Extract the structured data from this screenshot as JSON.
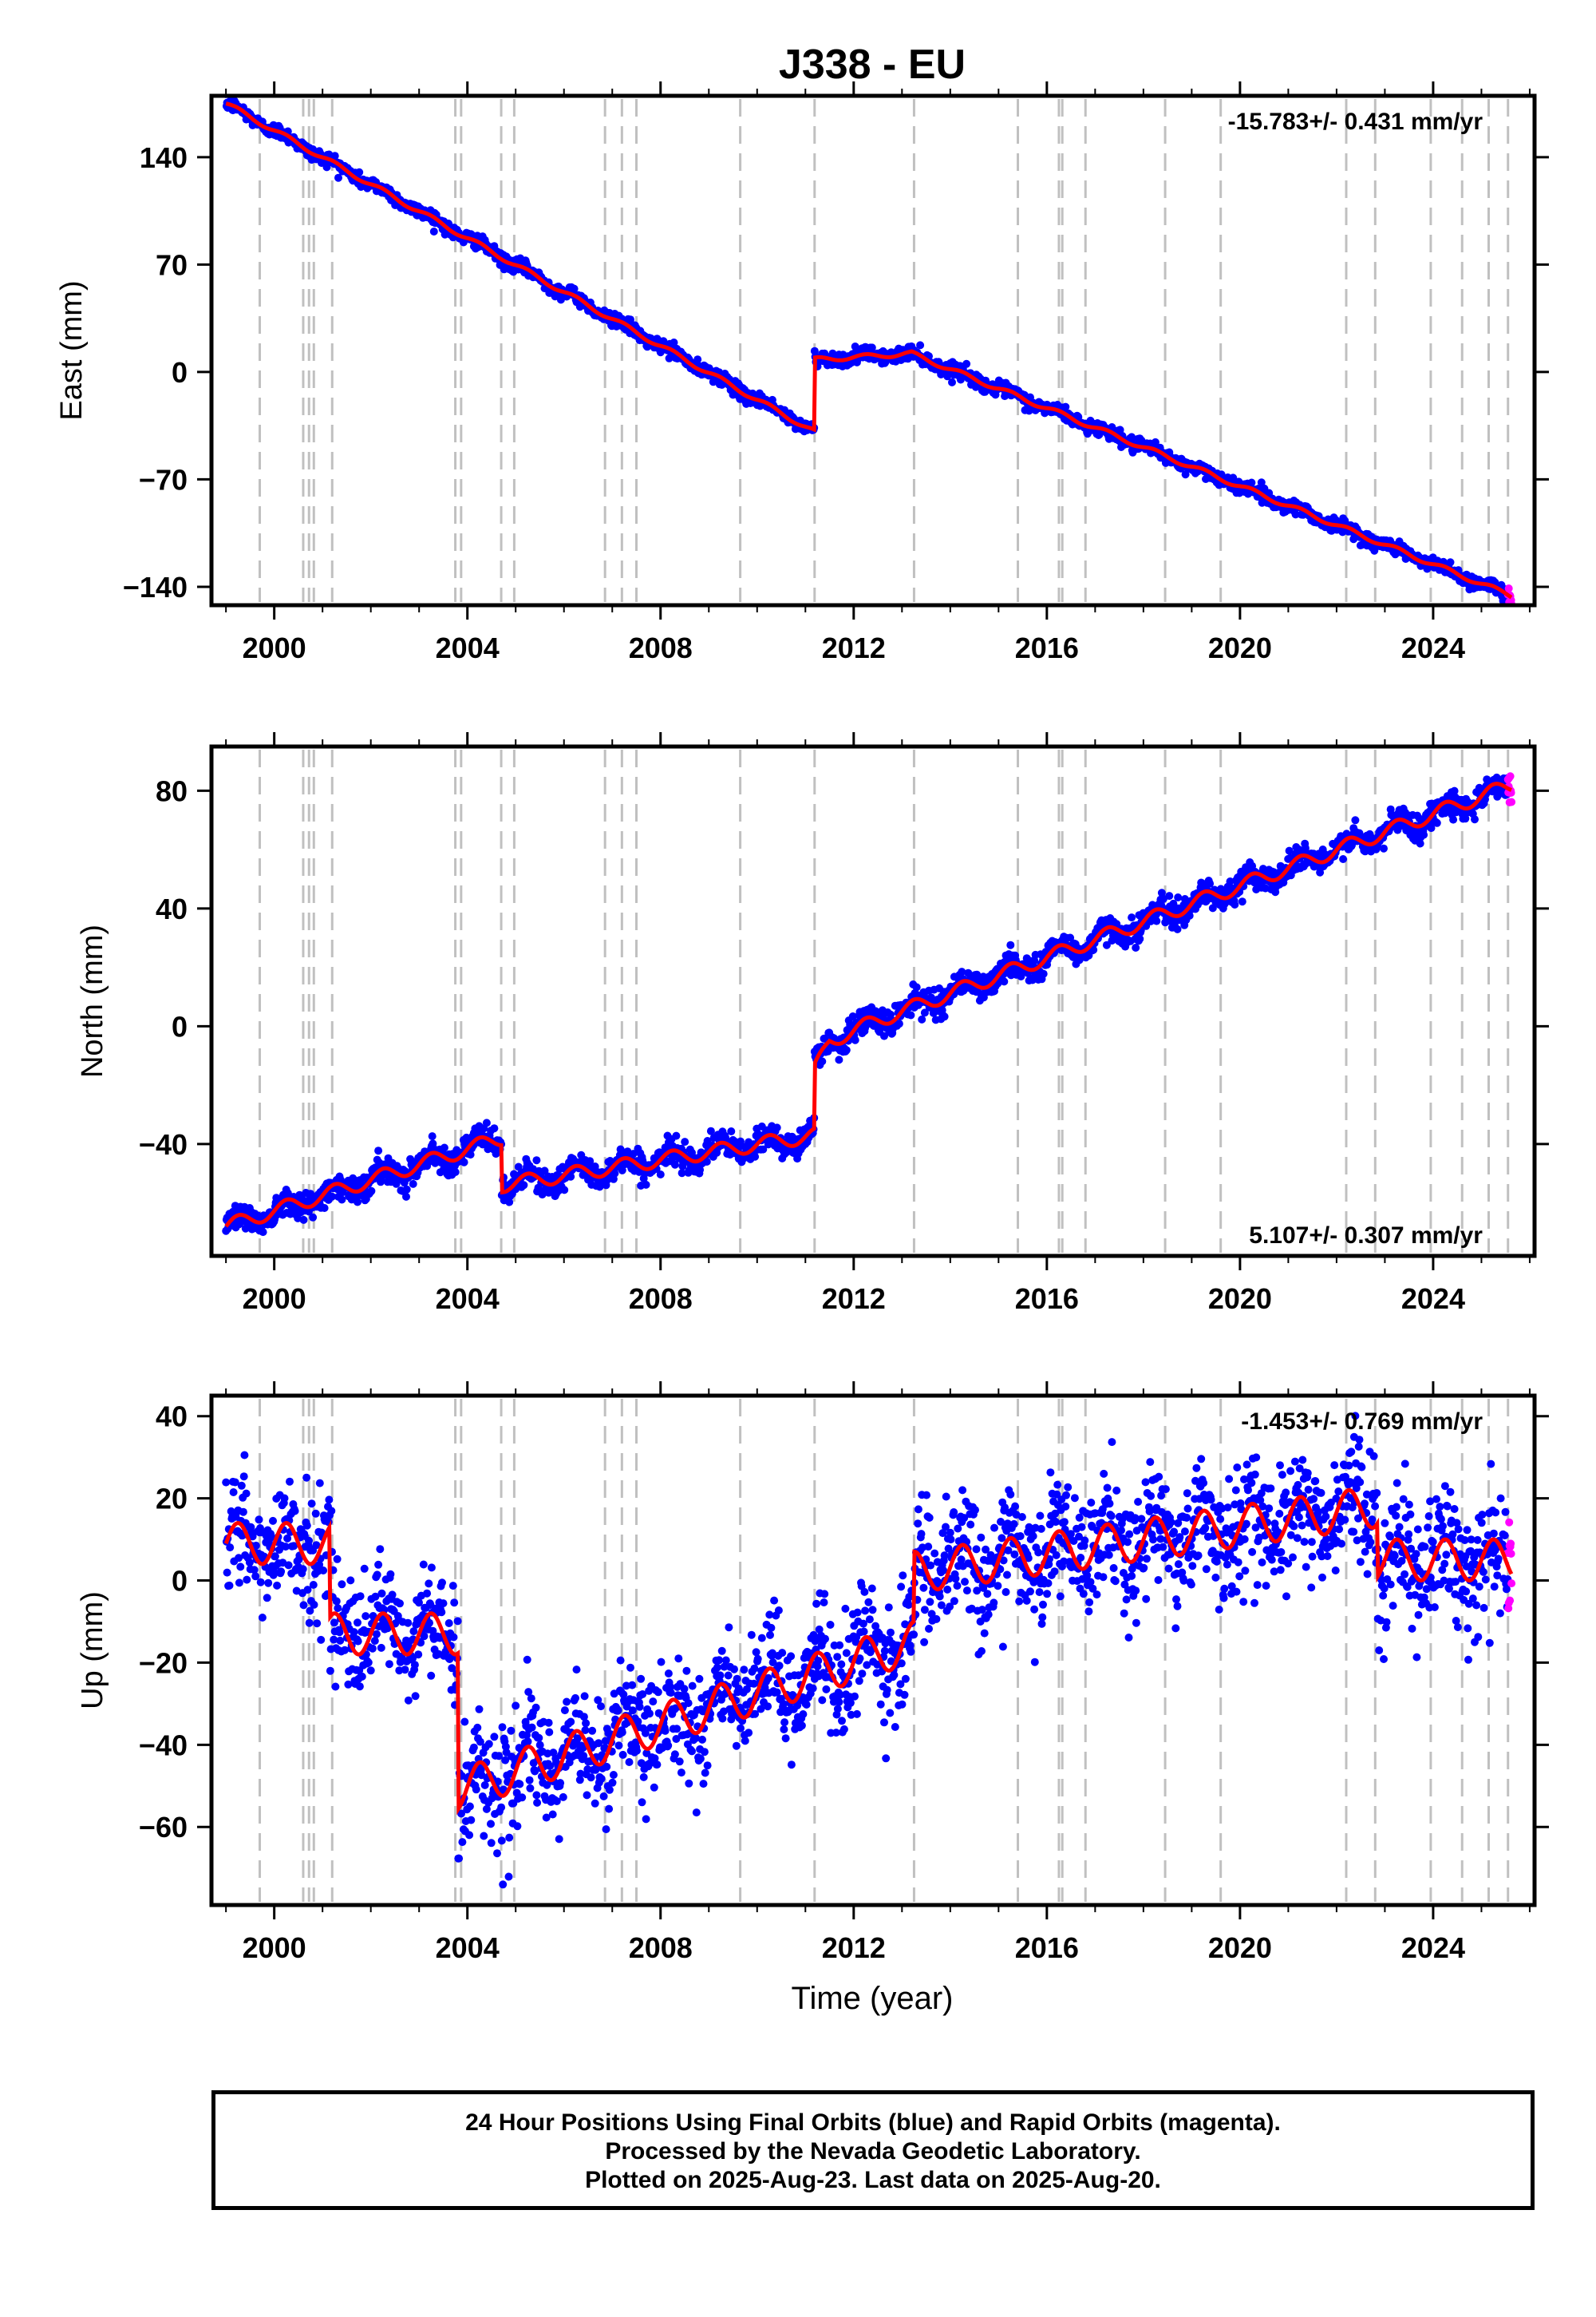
{
  "title": "J338 - EU",
  "colors": {
    "final_orbits": "#0000ff",
    "rapid_orbits": "#ff00ff",
    "model": "#ff0000",
    "event_lines": "#c0c0c0"
  },
  "chart_data": [
    {
      "type": "scatter",
      "component": "east",
      "ylabel": "East (mm)",
      "rate_label": "-15.783+/- 0.431 mm/yr",
      "rate_position": "top-right",
      "xlim": [
        1998.7,
        2026.1
      ],
      "ylim": [
        -152,
        180
      ],
      "xticks": [
        2000,
        2004,
        2008,
        2012,
        2016,
        2020,
        2024
      ],
      "yticks": [
        140,
        70,
        0,
        -70,
        -140
      ],
      "ytick_labels": [
        "140",
        "70",
        "0",
        "−70",
        "−140"
      ],
      "trend_model": {
        "segments": [
          {
            "x": [
              1999.0,
              2011.19
            ],
            "y": [
              175,
              -39
            ]
          },
          {
            "x": [
              2011.19,
              2013.2,
              2025.63
            ],
            "y": [
              8,
              12,
              -146
            ]
          }
        ],
        "annual_amplitude": 1.5
      },
      "final_orbits_range": [
        1999.0,
        2025.55
      ],
      "rapid_orbits_range": [
        2025.55,
        2025.63
      ],
      "scatter_noise": 2.2
    },
    {
      "type": "scatter",
      "component": "north",
      "ylabel": "North (mm)",
      "rate_label": "5.107+/- 0.307 mm/yr",
      "rate_position": "bottom-right",
      "xlim": [
        1998.7,
        2026.1
      ],
      "ylim": [
        -78,
        95
      ],
      "xticks": [
        2000,
        2004,
        2008,
        2012,
        2016,
        2020,
        2024
      ],
      "yticks": [
        80,
        40,
        0,
        -40
      ],
      "ytick_labels": [
        "80",
        "40",
        "0",
        "−40"
      ],
      "trend_model": {
        "segments": [
          {
            "x": [
              1999.0,
              2004.7
            ],
            "y": [
              -68,
              -38
            ]
          },
          {
            "x": [
              2004.7,
              2011.19
            ],
            "y": [
              -54,
              -37
            ]
          },
          {
            "x": [
              2011.19,
              2011.5,
              2012.5,
              2025.63
            ],
            "y": [
              -15,
              -5,
              2,
              82
            ]
          }
        ],
        "annual_amplitude": 2.5
      },
      "final_orbits_range": [
        1999.0,
        2025.55
      ],
      "rapid_orbits_range": [
        2025.55,
        2025.63
      ],
      "scatter_noise": 2.2
    },
    {
      "type": "scatter",
      "component": "up",
      "ylabel": "Up (mm)",
      "xlabel": "Time (year)",
      "rate_label": "-1.453+/- 0.769 mm/yr",
      "rate_position": "top-right",
      "xlim": [
        1998.7,
        2026.1
      ],
      "ylim": [
        -79,
        45
      ],
      "xticks": [
        2000,
        2004,
        2008,
        2012,
        2016,
        2020,
        2024
      ],
      "yticks": [
        40,
        20,
        0,
        -20,
        -40,
        -60
      ],
      "ytick_labels": [
        "40",
        "20",
        "0",
        "−20",
        "−40",
        "−60"
      ],
      "trend_model": {
        "segments": [
          {
            "x": [
              1999.0,
              2001.15
            ],
            "y": [
              9,
              9
            ]
          },
          {
            "x": [
              2001.15,
              2003.8
            ],
            "y": [
              -13,
              -13
            ]
          },
          {
            "x": [
              2003.8,
              2013.25
            ],
            "y": [
              -51,
              -15
            ]
          },
          {
            "x": [
              2013.25,
              2022.85
            ],
            "y": [
              2,
              18
            ]
          },
          {
            "x": [
              2022.85,
              2025.63
            ],
            "y": [
              5,
              5
            ]
          }
        ],
        "annual_amplitude": 5
      },
      "final_orbits_range": [
        1999.0,
        2025.55
      ],
      "rapid_orbits_range": [
        2025.55,
        2025.63
      ],
      "scatter_noise": 7
    }
  ],
  "event_lines": [
    1999.7,
    2000.6,
    2000.72,
    2000.82,
    2001.2,
    2003.75,
    2003.87,
    2004.7,
    2004.97,
    2006.85,
    2007.2,
    2007.5,
    2009.65,
    2011.19,
    2013.25,
    2015.4,
    2016.25,
    2016.32,
    2016.8,
    2018.45,
    2019.6,
    2022.2,
    2022.8,
    2023.95,
    2024.6,
    2025.15,
    2025.55
  ],
  "footer": {
    "line1": "24 Hour Positions Using Final Orbits (blue) and Rapid Orbits (magenta).",
    "line2": "Processed by the Nevada Geodetic Laboratory.",
    "line3": "Plotted on 2025-Aug-23. Last data on 2025-Aug-20."
  }
}
